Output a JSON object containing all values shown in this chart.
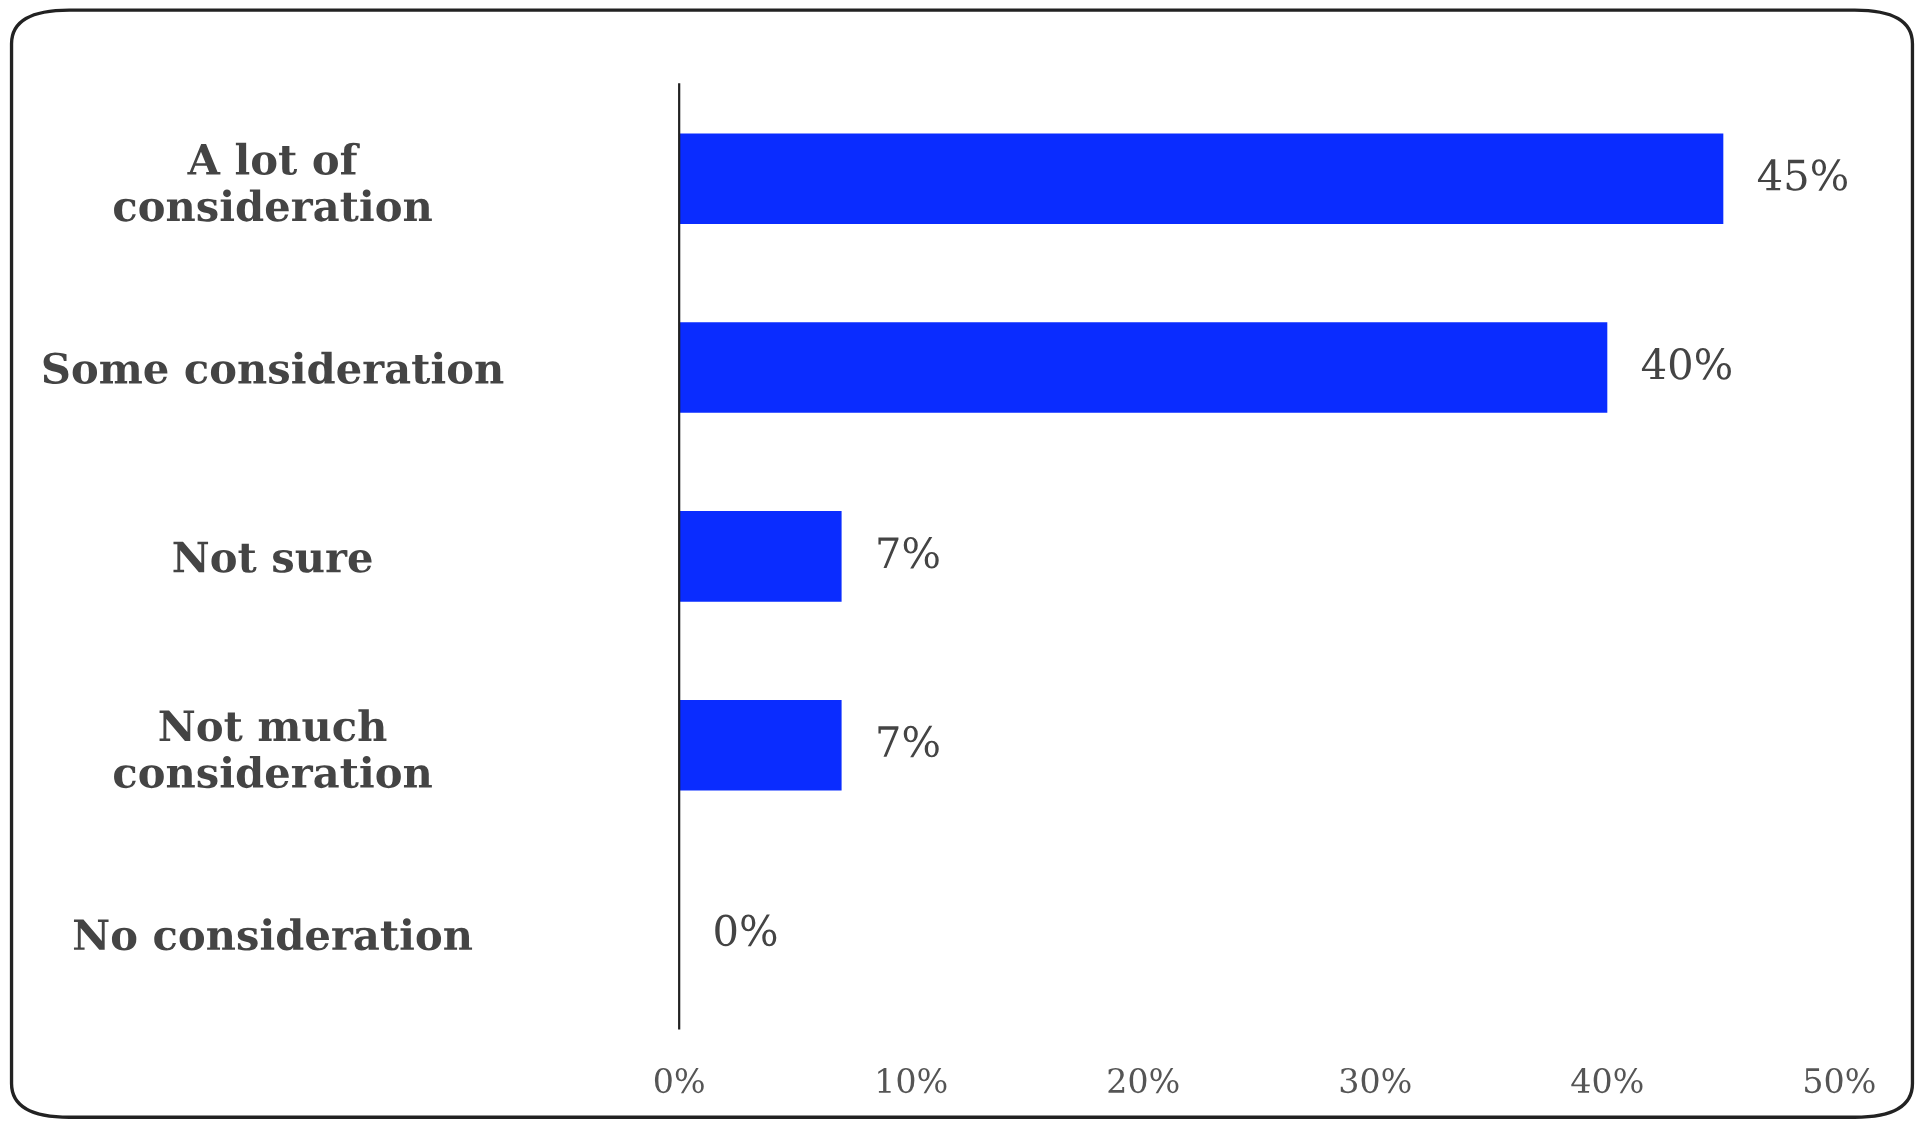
{
  "chart_data": {
    "type": "bar",
    "orientation": "horizontal",
    "categories": [
      "A lot of\nconsideration",
      "Some consideration",
      "Not sure",
      "Not much\nconsideration",
      "No consideration"
    ],
    "values": [
      45,
      40,
      7,
      7,
      0
    ],
    "value_labels": [
      "45%",
      "40%",
      "7%",
      "7%",
      "0%"
    ],
    "color": "#0a2cff",
    "xlim": [
      0,
      50
    ],
    "xticks": [
      {
        "value": 0,
        "label": "0%"
      },
      {
        "value": 10,
        "label": "10%"
      },
      {
        "value": 20,
        "label": "20%"
      },
      {
        "value": 30,
        "label": "30%"
      },
      {
        "value": 40,
        "label": "40%"
      },
      {
        "value": 50,
        "label": "50%"
      }
    ],
    "grid": false,
    "legend": false
  }
}
